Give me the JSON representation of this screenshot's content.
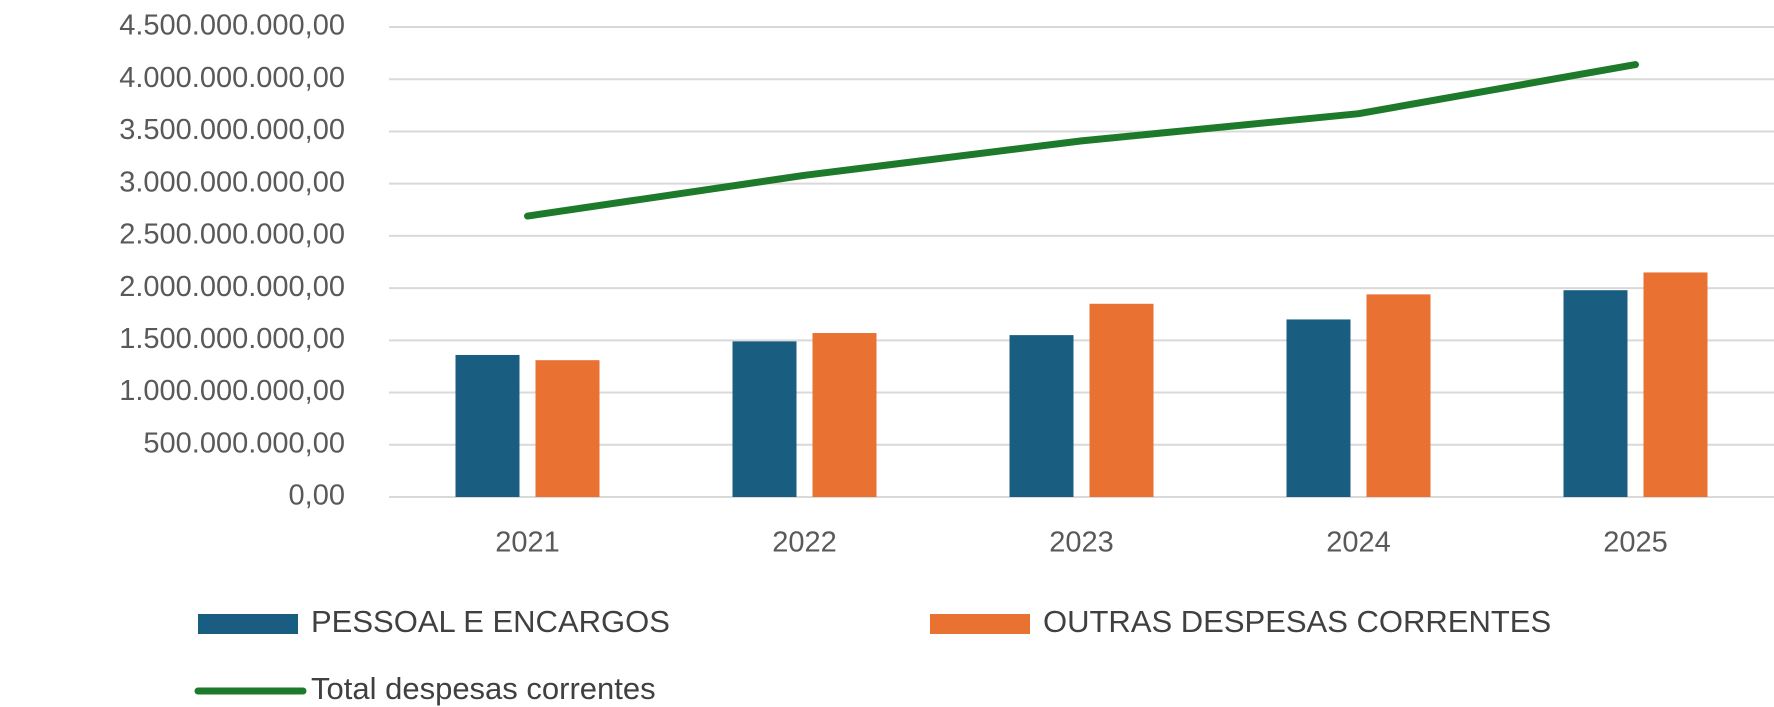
{
  "chart_data": {
    "type": "bar",
    "categories": [
      "2021",
      "2022",
      "2023",
      "2024",
      "2025"
    ],
    "series": [
      {
        "name": "PESSOAL E ENCARGOS",
        "type": "bar",
        "color": "#195e80",
        "values": [
          1360000000,
          1490000000,
          1550000000,
          1700000000,
          1980000000
        ]
      },
      {
        "name": "OUTRAS DESPESAS CORRENTES",
        "type": "bar",
        "color": "#e97132",
        "values": [
          1310000000,
          1570000000,
          1850000000,
          1940000000,
          2150000000
        ]
      },
      {
        "name": "Total despesas correntes",
        "type": "line",
        "color": "#1e7a2b",
        "values": [
          2690000000,
          3080000000,
          3410000000,
          3670000000,
          4140000000
        ]
      }
    ],
    "ylim": [
      0,
      4500000000
    ],
    "yticks": [
      {
        "value": 0,
        "label": "0,00"
      },
      {
        "value": 500000000,
        "label": "500.000.000,00"
      },
      {
        "value": 1000000000,
        "label": "1.000.000.000,00"
      },
      {
        "value": 1500000000,
        "label": "1.500.000.000,00"
      },
      {
        "value": 2000000000,
        "label": "2.000.000.000,00"
      },
      {
        "value": 2500000000,
        "label": "2.500.000.000,00"
      },
      {
        "value": 3000000000,
        "label": "3.000.000.000,00"
      },
      {
        "value": 3500000000,
        "label": "3.500.000.000,00"
      },
      {
        "value": 4000000000,
        "label": "4.000.000.000,00"
      },
      {
        "value": 4500000000,
        "label": "4.500.000.000,00"
      }
    ],
    "grid": true
  }
}
